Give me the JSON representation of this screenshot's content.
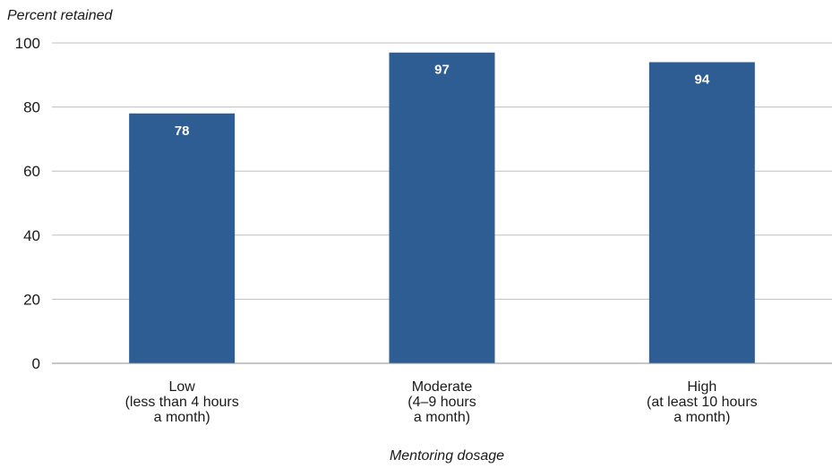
{
  "chart_data": {
    "type": "bar",
    "title": "",
    "ylabel": "Percent retained",
    "xlabel": "Mentoring dosage",
    "ylim": [
      0,
      100
    ],
    "yticks": [
      0,
      20,
      40,
      60,
      80,
      100
    ],
    "grid": true,
    "categories": [
      [
        "Low",
        "(less than 4 hours",
        "a month)"
      ],
      [
        "Moderate",
        "(4–9 hours",
        "a month)"
      ],
      [
        "High",
        "(at least 10 hours",
        "a month)"
      ]
    ],
    "values": [
      78,
      97,
      94
    ],
    "data_labels": [
      "78",
      "97",
      "94"
    ],
    "bar_color": "#2e5d94",
    "label_color": "#ffffff"
  }
}
